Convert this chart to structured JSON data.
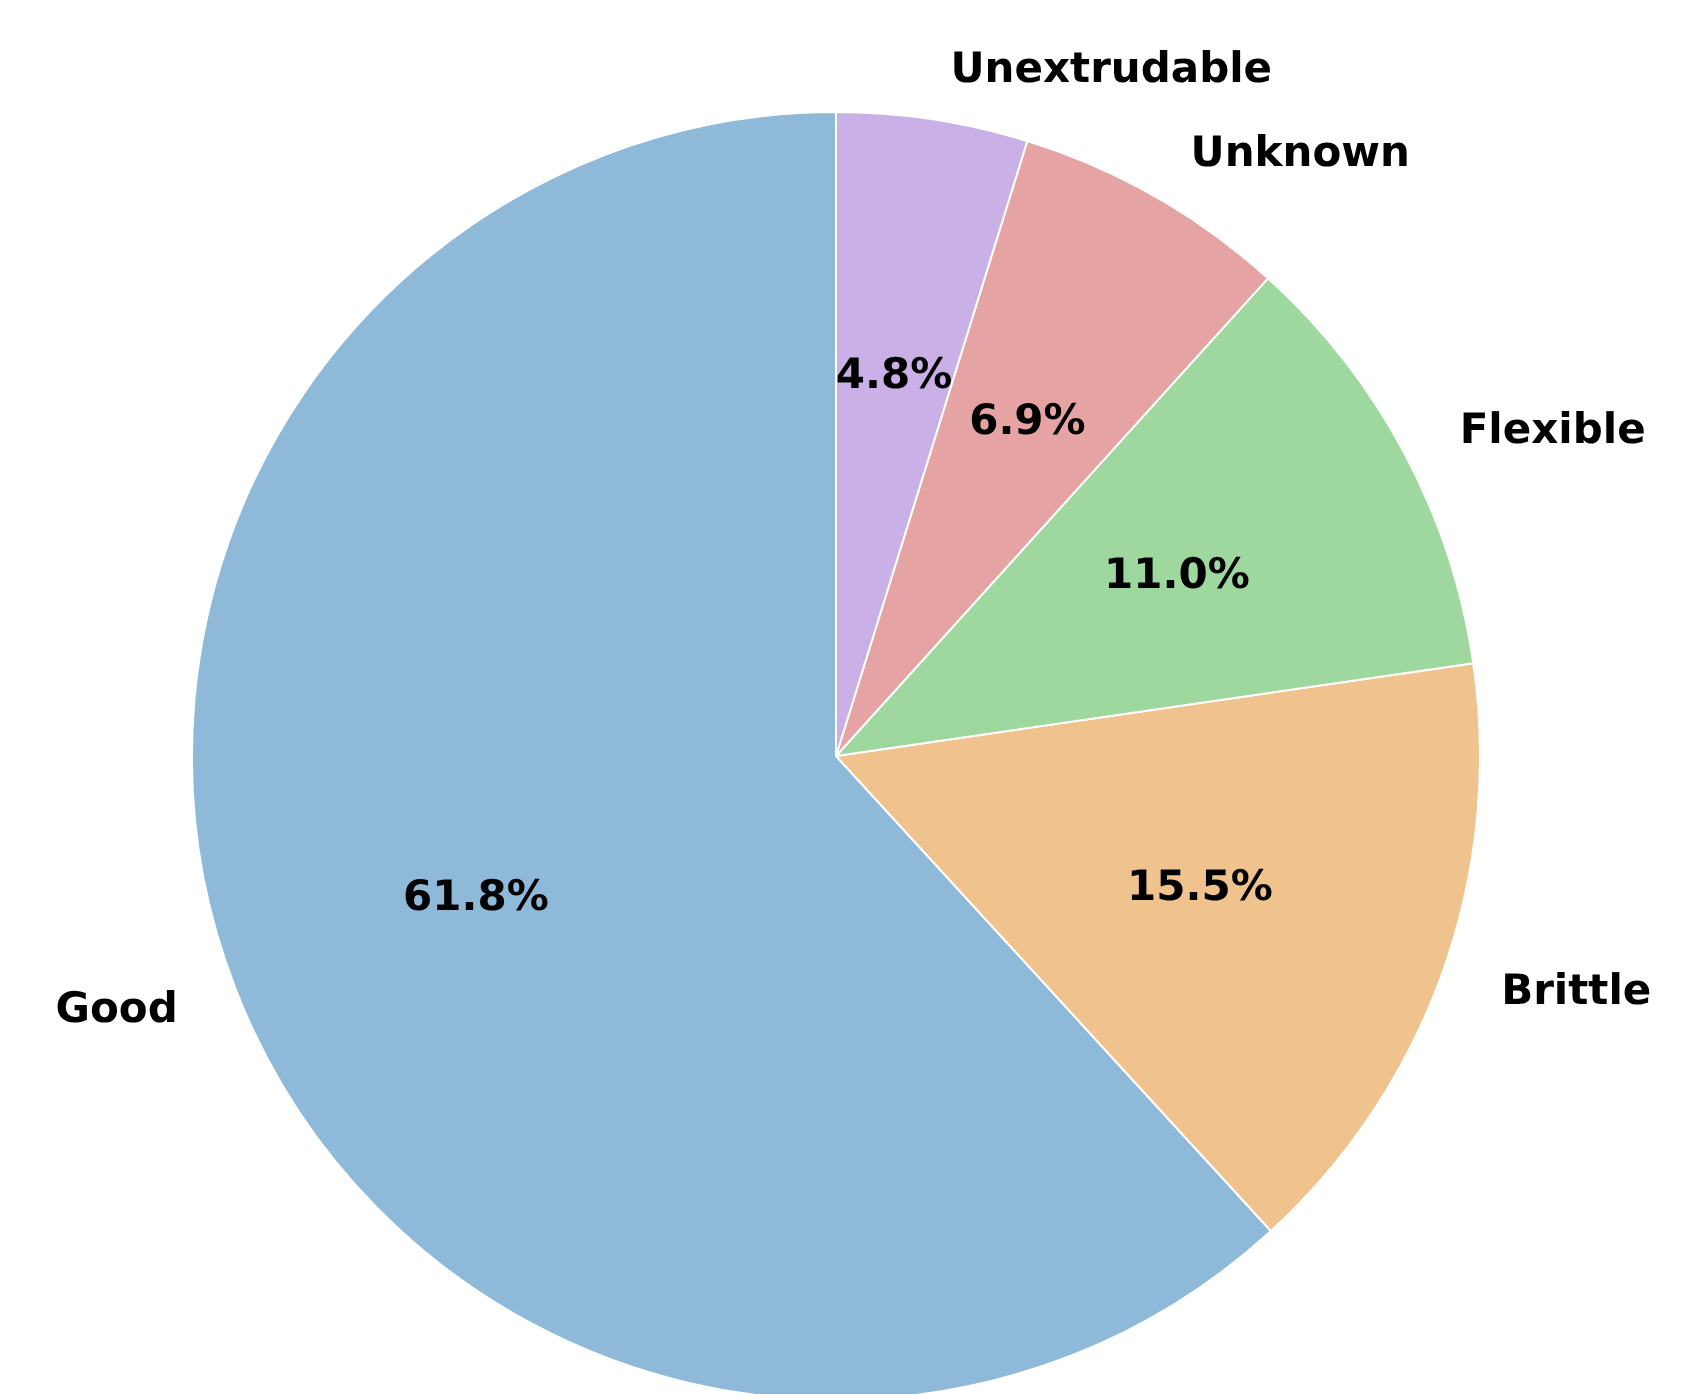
{
  "chart_data": {
    "type": "pie",
    "categories": [
      "Good",
      "Brittle",
      "Flexible",
      "Unknown",
      "Unextrudable"
    ],
    "values": [
      61.8,
      15.5,
      11.0,
      6.9,
      4.8
    ],
    "value_labels": [
      "61.8%",
      "15.5%",
      "11.0%",
      "6.9%",
      "4.8%"
    ],
    "colors": [
      "#8fb9d8",
      "#f0c38e",
      "#9ed89e",
      "#e5a3a3",
      "#c9b0e6"
    ],
    "legend": false
  }
}
